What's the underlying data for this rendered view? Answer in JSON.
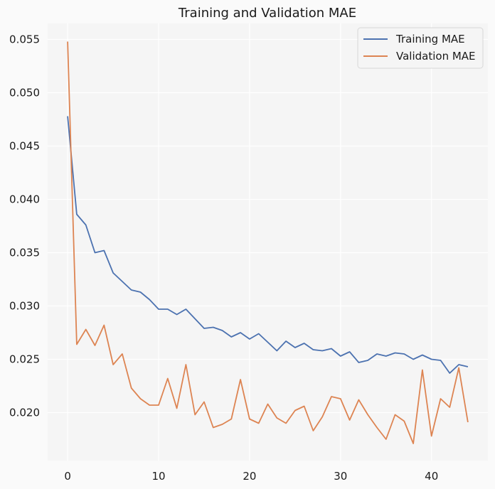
{
  "chart_data": {
    "type": "line",
    "title": "Training and Validation MAE",
    "xlabel": "",
    "ylabel": "",
    "xlim": [
      -2.2,
      46.2
    ],
    "ylim": [
      0.0155,
      0.0565
    ],
    "xticks": [
      0,
      10,
      20,
      30,
      40
    ],
    "yticks": [
      0.02,
      0.025,
      0.03,
      0.035,
      0.04,
      0.045,
      0.05,
      0.055
    ],
    "ytick_labels": [
      "0.020",
      "0.025",
      "0.030",
      "0.035",
      "0.040",
      "0.045",
      "0.050",
      "0.055"
    ],
    "xtick_labels": [
      "0",
      "10",
      "20",
      "30",
      "40"
    ],
    "grid": true,
    "legend_position": "top-right",
    "x": [
      0,
      1,
      2,
      3,
      4,
      5,
      6,
      7,
      8,
      9,
      10,
      11,
      12,
      13,
      14,
      15,
      16,
      17,
      18,
      19,
      20,
      21,
      22,
      23,
      24,
      25,
      26,
      27,
      28,
      29,
      30,
      31,
      32,
      33,
      34,
      35,
      36,
      37,
      38,
      39,
      40,
      41,
      42,
      43,
      44
    ],
    "series": [
      {
        "name": "Training MAE",
        "color": "#4c72b0",
        "values": [
          0.0478,
          0.0386,
          0.0376,
          0.035,
          0.0352,
          0.0331,
          0.0323,
          0.0315,
          0.0313,
          0.0306,
          0.0297,
          0.0297,
          0.0292,
          0.0297,
          0.0288,
          0.0279,
          0.028,
          0.0277,
          0.0271,
          0.0275,
          0.0269,
          0.0274,
          0.0266,
          0.0258,
          0.0267,
          0.0261,
          0.0265,
          0.0259,
          0.0258,
          0.026,
          0.0253,
          0.0257,
          0.0247,
          0.0249,
          0.0255,
          0.0253,
          0.0256,
          0.0255,
          0.025,
          0.0254,
          0.025,
          0.0249,
          0.0237,
          0.0245,
          0.0243
        ]
      },
      {
        "name": "Validation MAE",
        "color": "#dd8452",
        "values": [
          0.0548,
          0.0264,
          0.0278,
          0.0263,
          0.0282,
          0.0245,
          0.0255,
          0.0223,
          0.0213,
          0.0207,
          0.0207,
          0.0232,
          0.0204,
          0.0245,
          0.0198,
          0.021,
          0.0186,
          0.0189,
          0.0194,
          0.0231,
          0.0194,
          0.019,
          0.0208,
          0.0195,
          0.019,
          0.0202,
          0.0206,
          0.0183,
          0.0196,
          0.0215,
          0.0213,
          0.0193,
          0.0212,
          0.0198,
          0.0186,
          0.0175,
          0.0198,
          0.0192,
          0.0171,
          0.024,
          0.0178,
          0.0213,
          0.0205,
          0.0242,
          0.0191
        ]
      }
    ]
  }
}
